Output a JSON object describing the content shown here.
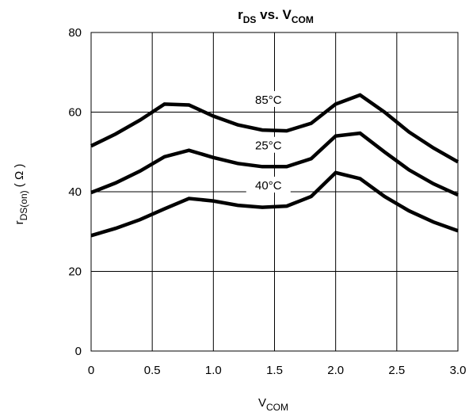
{
  "chart_data": {
    "type": "line",
    "title": {
      "main": "r",
      "main_sub": "DS",
      "mid": " vs. V",
      "end_sub": "COM"
    },
    "xlabel": {
      "main": "V",
      "sub": "COM"
    },
    "ylabel": {
      "main": "r",
      "sub": "DS(on)",
      "unit": "( Ω )"
    },
    "xlim": [
      0,
      3.0
    ],
    "ylim": [
      0,
      80
    ],
    "xticks": [
      "0",
      "0.5",
      "1.0",
      "1.5",
      "2.0",
      "2.5",
      "3.0"
    ],
    "xtick_values": [
      0,
      0.5,
      1.0,
      1.5,
      2.0,
      2.5,
      3.0
    ],
    "yticks": [
      "0",
      "20",
      "40",
      "60",
      "80"
    ],
    "ytick_values": [
      0,
      20,
      40,
      60,
      80
    ],
    "grid": true,
    "x": [
      0,
      0.2,
      0.4,
      0.6,
      0.8,
      1.0,
      1.2,
      1.4,
      1.6,
      1.8,
      2.0,
      2.2,
      2.4,
      2.6,
      2.8,
      3.0
    ],
    "series": [
      {
        "name": "85°C",
        "values": [
          51.5,
          54.5,
          58.0,
          62.0,
          61.8,
          59.0,
          56.8,
          55.5,
          55.3,
          57.2,
          62.0,
          64.3,
          60.0,
          55.0,
          51.0,
          47.5
        ]
      },
      {
        "name": "25°C",
        "values": [
          39.8,
          42.2,
          45.2,
          48.8,
          50.4,
          48.6,
          47.1,
          46.3,
          46.3,
          48.3,
          54.0,
          54.7,
          50.0,
          45.5,
          42.0,
          39.2
        ]
      },
      {
        "name": "40°C",
        "values": [
          29.0,
          30.8,
          33.0,
          35.7,
          38.3,
          37.7,
          36.6,
          36.1,
          36.4,
          38.8,
          44.8,
          43.3,
          38.8,
          35.2,
          32.4,
          30.2
        ]
      }
    ],
    "series_label_positions": [
      {
        "x": 1.45,
        "y": 62.5
      },
      {
        "x": 1.45,
        "y": 51.0
      },
      {
        "x": 1.45,
        "y": 41.0
      }
    ]
  }
}
